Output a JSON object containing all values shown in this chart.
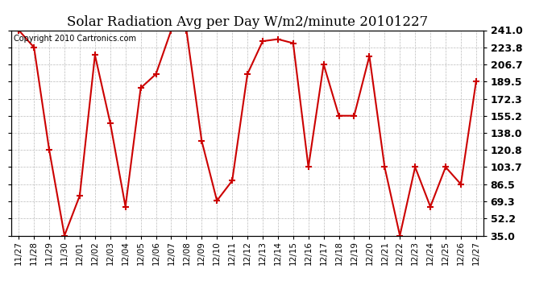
{
  "title": "Solar Radiation Avg per Day W/m2/minute 20101227",
  "copyright_text": "Copyright 2010 Cartronics.com",
  "x_labels": [
    "11/27",
    "11/28",
    "11/29",
    "11/30",
    "12/01",
    "12/02",
    "12/03",
    "12/04",
    "12/05",
    "12/06",
    "12/07",
    "12/08",
    "12/09",
    "12/10",
    "12/11",
    "12/12",
    "12/13",
    "12/14",
    "12/15",
    "12/16",
    "12/17",
    "12/18",
    "12/19",
    "12/20",
    "12/21",
    "12/22",
    "12/23",
    "12/24",
    "12/25",
    "12/26",
    "12/27"
  ],
  "y_values": [
    241.0,
    223.8,
    120.8,
    35.0,
    75.0,
    216.0,
    148.0,
    64.0,
    183.0,
    197.0,
    241.0,
    241.0,
    130.0,
    70.0,
    90.0,
    197.0,
    230.0,
    232.0,
    228.0,
    103.7,
    206.7,
    155.2,
    155.2,
    215.0,
    103.7,
    35.0,
    103.7,
    64.0,
    103.7,
    86.5,
    189.5
  ],
  "line_color": "#cc0000",
  "marker": "+",
  "marker_size": 6,
  "marker_linewidth": 1.5,
  "line_width": 1.5,
  "background_color": "#ffffff",
  "grid_color": "#bbbbbb",
  "ylim": [
    35.0,
    241.0
  ],
  "yticks": [
    35.0,
    52.2,
    69.3,
    86.5,
    103.7,
    120.8,
    138.0,
    155.2,
    172.3,
    189.5,
    206.7,
    223.8,
    241.0
  ],
  "title_fontsize": 12,
  "tick_fontsize": 7.5,
  "ytick_fontsize": 9,
  "copyright_fontsize": 7,
  "figwidth": 6.9,
  "figheight": 3.75,
  "dpi": 100
}
